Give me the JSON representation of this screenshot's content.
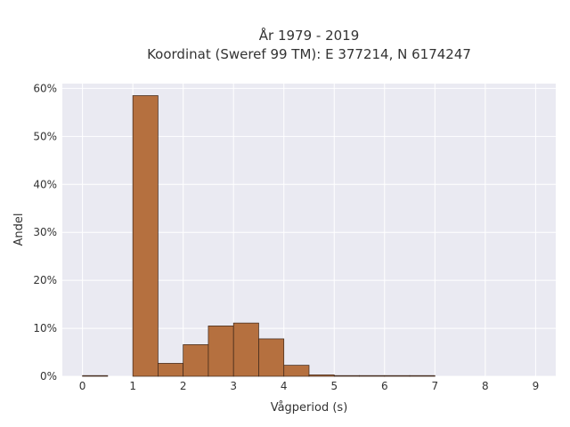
{
  "chart_data": {
    "type": "bar",
    "title_line1": "År 1979 - 2019",
    "title_line2": "Koordinat (Sweref 99 TM): E 377214, N 6174247",
    "xlabel": "Vågperiod (s)",
    "ylabel": "Andel",
    "xlim": [
      -0.4,
      9.4
    ],
    "ylim": [
      0,
      0.61
    ],
    "x_ticks": [
      0,
      1,
      2,
      3,
      4,
      5,
      6,
      7,
      8,
      9
    ],
    "x_tick_labels": [
      "0",
      "1",
      "2",
      "3",
      "4",
      "5",
      "6",
      "7",
      "8",
      "9"
    ],
    "y_ticks": [
      0,
      0.1,
      0.2,
      0.3,
      0.4,
      0.5,
      0.6
    ],
    "y_tick_labels": [
      "0%",
      "10%",
      "20%",
      "30%",
      "40%",
      "50%",
      "60%"
    ],
    "bin_edges": [
      0,
      0.5,
      1,
      1.5,
      2,
      2.5,
      3,
      3.5,
      4,
      4.5,
      5,
      5.5,
      6,
      6.5,
      7
    ],
    "values": [
      0.001,
      0,
      0.585,
      0.027,
      0.066,
      0.105,
      0.111,
      0.078,
      0.023,
      0.003,
      0.001,
      0.0005,
      0.0005,
      0.0005
    ],
    "grid": true,
    "colors": {
      "bar_fill": "#b5703f",
      "bar_edge": "#3a2418",
      "plot_background": "#eaeaf2",
      "grid": "#ffffff"
    }
  }
}
